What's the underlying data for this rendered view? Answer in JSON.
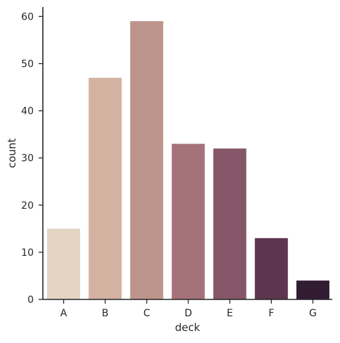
{
  "chart_data": {
    "type": "bar",
    "title": "",
    "xlabel": "deck",
    "ylabel": "count",
    "categories": [
      "A",
      "B",
      "C",
      "D",
      "E",
      "F",
      "G"
    ],
    "values": [
      15,
      47,
      59,
      33,
      32,
      13,
      4
    ],
    "ylim": [
      0,
      62
    ],
    "yticks": [
      0,
      10,
      20,
      30,
      40,
      50,
      60
    ],
    "grid": false,
    "legend": "none",
    "colors": [
      "#e3d4c4",
      "#d3b2a2",
      "#bd948b",
      "#a6727a",
      "#855668",
      "#5e354e",
      "#321c32"
    ],
    "text_color": "#262626"
  }
}
